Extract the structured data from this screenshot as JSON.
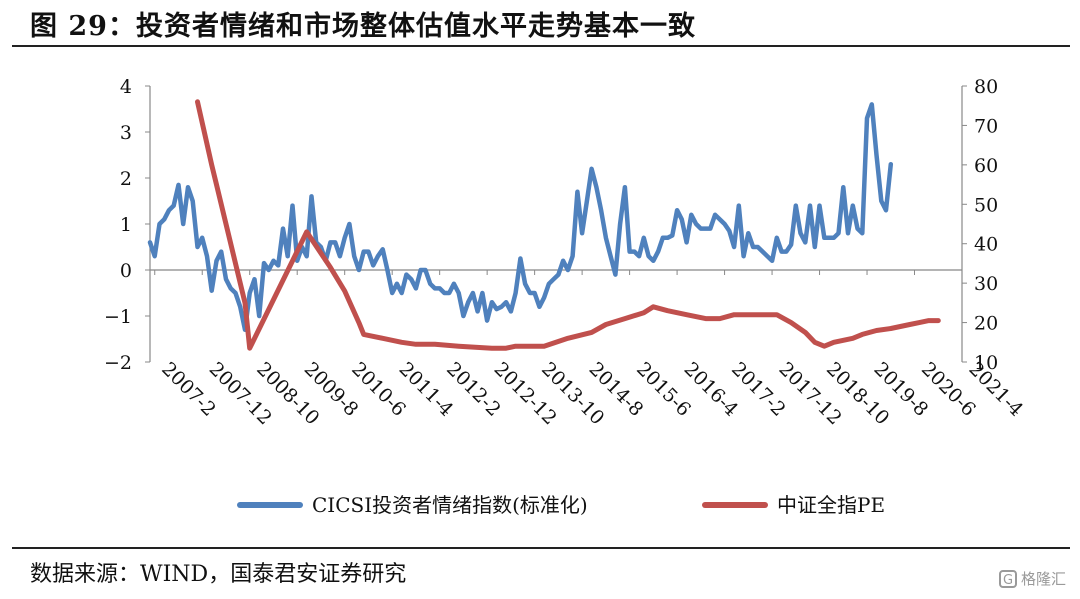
{
  "header": {
    "title": "图 29：投资者情绪和市场整体估值水平走势基本一致"
  },
  "footer": {
    "source": "数据来源：WIND，国泰君安证券研究",
    "watermark": "格隆汇"
  },
  "colors": {
    "sentiment": "#4f81bd",
    "pe": "#c0504d",
    "axis": "#888888"
  },
  "chart_data": {
    "type": "line",
    "title": "",
    "xlabel": "",
    "ylabel": "",
    "y_left_lim": [
      -2,
      4
    ],
    "y_left_ticks": [
      -2,
      -1,
      0,
      1,
      2,
      3,
      4
    ],
    "y_right_lim": [
      10,
      80
    ],
    "y_right_ticks": [
      10,
      20,
      30,
      40,
      50,
      60,
      70,
      80
    ],
    "x_tick_labels": [
      "2007-2",
      "2007-12",
      "2008-10",
      "2009-8",
      "2010-6",
      "2011-4",
      "2012-2",
      "2012-12",
      "2013-10",
      "2014-8",
      "2015-6",
      "2016-4",
      "2017-2",
      "2017-12",
      "2018-10",
      "2019-8",
      "2020-6",
      "2021-4"
    ],
    "x_range": [
      "2007-01",
      "2021-04"
    ],
    "grid": false,
    "legend_position": "bottom",
    "series": [
      {
        "name": "CICSI投资者情绪指数(标准化)",
        "axis": "left",
        "color": "#4f81bd",
        "points": [
          [
            "2007-01",
            0.6
          ],
          [
            "2007-02",
            0.3
          ],
          [
            "2007-03",
            1.0
          ],
          [
            "2007-04",
            1.1
          ],
          [
            "2007-05",
            1.3
          ],
          [
            "2007-06",
            1.4
          ],
          [
            "2007-07",
            1.85
          ],
          [
            "2007-08",
            1.0
          ],
          [
            "2007-09",
            1.8
          ],
          [
            "2007-10",
            1.5
          ],
          [
            "2007-11",
            0.5
          ],
          [
            "2007-12",
            0.7
          ],
          [
            "2008-01",
            0.3
          ],
          [
            "2008-02",
            -0.45
          ],
          [
            "2008-03",
            0.2
          ],
          [
            "2008-04",
            0.4
          ],
          [
            "2008-05",
            -0.2
          ],
          [
            "2008-06",
            -0.4
          ],
          [
            "2008-07",
            -0.5
          ],
          [
            "2008-08",
            -0.8
          ],
          [
            "2008-09",
            -1.3
          ],
          [
            "2008-10",
            -0.5
          ],
          [
            "2008-11",
            -0.2
          ],
          [
            "2008-12",
            -1.0
          ],
          [
            "2009-01",
            0.15
          ],
          [
            "2009-02",
            0.0
          ],
          [
            "2009-03",
            0.2
          ],
          [
            "2009-04",
            0.1
          ],
          [
            "2009-05",
            0.9
          ],
          [
            "2009-06",
            0.3
          ],
          [
            "2009-07",
            1.4
          ],
          [
            "2009-08",
            0.2
          ],
          [
            "2009-09",
            0.5
          ],
          [
            "2009-10",
            0.3
          ],
          [
            "2009-11",
            1.6
          ],
          [
            "2009-12",
            0.6
          ],
          [
            "2010-01",
            0.5
          ],
          [
            "2010-02",
            0.2
          ],
          [
            "2010-03",
            0.6
          ],
          [
            "2010-04",
            0.6
          ],
          [
            "2010-05",
            0.3
          ],
          [
            "2010-06",
            0.7
          ],
          [
            "2010-07",
            1.0
          ],
          [
            "2010-08",
            0.3
          ],
          [
            "2010-09",
            0.0
          ],
          [
            "2010-10",
            0.4
          ],
          [
            "2010-11",
            0.4
          ],
          [
            "2010-12",
            0.1
          ],
          [
            "2011-01",
            0.3
          ],
          [
            "2011-02",
            0.45
          ],
          [
            "2011-03",
            0.0
          ],
          [
            "2011-04",
            -0.5
          ],
          [
            "2011-05",
            -0.3
          ],
          [
            "2011-06",
            -0.5
          ],
          [
            "2011-07",
            -0.1
          ],
          [
            "2011-08",
            -0.2
          ],
          [
            "2011-09",
            -0.4
          ],
          [
            "2011-10",
            0.0
          ],
          [
            "2011-11",
            0.0
          ],
          [
            "2011-12",
            -0.3
          ],
          [
            "2012-01",
            -0.4
          ],
          [
            "2012-02",
            -0.4
          ],
          [
            "2012-03",
            -0.5
          ],
          [
            "2012-04",
            -0.5
          ],
          [
            "2012-05",
            -0.3
          ],
          [
            "2012-06",
            -0.5
          ],
          [
            "2012-07",
            -1.0
          ],
          [
            "2012-08",
            -0.7
          ],
          [
            "2012-09",
            -0.5
          ],
          [
            "2012-10",
            -0.9
          ],
          [
            "2012-11",
            -0.5
          ],
          [
            "2012-12",
            -1.1
          ],
          [
            "2013-01",
            -0.7
          ],
          [
            "2013-02",
            -0.85
          ],
          [
            "2013-03",
            -0.8
          ],
          [
            "2013-04",
            -0.7
          ],
          [
            "2013-05",
            -0.9
          ],
          [
            "2013-06",
            -0.5
          ],
          [
            "2013-07",
            0.25
          ],
          [
            "2013-08",
            -0.3
          ],
          [
            "2013-09",
            -0.5
          ],
          [
            "2013-10",
            -0.5
          ],
          [
            "2013-11",
            -0.8
          ],
          [
            "2013-12",
            -0.6
          ],
          [
            "2014-01",
            -0.3
          ],
          [
            "2014-02",
            -0.2
          ],
          [
            "2014-03",
            -0.1
          ],
          [
            "2014-04",
            0.2
          ],
          [
            "2014-05",
            0.0
          ],
          [
            "2014-06",
            0.3
          ],
          [
            "2014-07",
            1.7
          ],
          [
            "2014-08",
            0.8
          ],
          [
            "2014-09",
            1.5
          ],
          [
            "2014-10",
            2.2
          ],
          [
            "2014-11",
            1.8
          ],
          [
            "2014-12",
            1.3
          ],
          [
            "2015-01",
            0.7
          ],
          [
            "2015-02",
            0.3
          ],
          [
            "2015-03",
            -0.1
          ],
          [
            "2015-04",
            1.0
          ],
          [
            "2015-05",
            1.8
          ],
          [
            "2015-06",
            0.4
          ],
          [
            "2015-07",
            0.4
          ],
          [
            "2015-08",
            0.3
          ],
          [
            "2015-09",
            0.7
          ],
          [
            "2015-10",
            0.3
          ],
          [
            "2015-11",
            0.2
          ],
          [
            "2015-12",
            0.4
          ],
          [
            "2016-01",
            0.7
          ],
          [
            "2016-02",
            0.7
          ],
          [
            "2016-03",
            0.75
          ],
          [
            "2016-04",
            1.3
          ],
          [
            "2016-05",
            1.1
          ],
          [
            "2016-06",
            0.6
          ],
          [
            "2016-07",
            1.2
          ],
          [
            "2016-08",
            1.0
          ],
          [
            "2016-09",
            0.9
          ],
          [
            "2016-10",
            0.9
          ],
          [
            "2016-11",
            0.9
          ],
          [
            "2016-12",
            1.2
          ],
          [
            "2017-01",
            1.1
          ],
          [
            "2017-02",
            1.0
          ],
          [
            "2017-03",
            0.85
          ],
          [
            "2017-04",
            0.5
          ],
          [
            "2017-05",
            1.4
          ],
          [
            "2017-06",
            0.3
          ],
          [
            "2017-07",
            0.8
          ],
          [
            "2017-08",
            0.5
          ],
          [
            "2017-09",
            0.5
          ],
          [
            "2017-10",
            0.4
          ],
          [
            "2017-11",
            0.3
          ],
          [
            "2017-12",
            0.2
          ],
          [
            "2018-01",
            0.7
          ],
          [
            "2018-02",
            0.4
          ],
          [
            "2018-03",
            0.4
          ],
          [
            "2018-04",
            0.55
          ],
          [
            "2018-05",
            1.4
          ],
          [
            "2018-06",
            0.8
          ],
          [
            "2018-07",
            0.6
          ],
          [
            "2018-08",
            1.4
          ],
          [
            "2018-09",
            0.5
          ],
          [
            "2018-10",
            1.4
          ],
          [
            "2018-11",
            0.7
          ],
          [
            "2018-12",
            0.7
          ],
          [
            "2019-01",
            0.7
          ],
          [
            "2019-02",
            0.8
          ],
          [
            "2019-03",
            1.8
          ],
          [
            "2019-04",
            0.8
          ],
          [
            "2019-05",
            1.4
          ],
          [
            "2019-06",
            0.9
          ],
          [
            "2019-07",
            0.8
          ],
          [
            "2019-08",
            3.3
          ],
          [
            "2019-09",
            3.6
          ],
          [
            "2019-10",
            2.5
          ],
          [
            "2019-11",
            1.5
          ],
          [
            "2019-12",
            1.3
          ],
          [
            "2020-01",
            2.3
          ]
        ]
      },
      {
        "name": "中证全指PE",
        "axis": "right",
        "color": "#c0504d",
        "points": [
          [
            "2007-11",
            76
          ],
          [
            "2008-02",
            60
          ],
          [
            "2008-03",
            55
          ],
          [
            "2008-09",
            25
          ],
          [
            "2008-10",
            13.5
          ],
          [
            "2009-10",
            43
          ],
          [
            "2010-03",
            34
          ],
          [
            "2010-06",
            28
          ],
          [
            "2010-09",
            20
          ],
          [
            "2010-10",
            17
          ],
          [
            "2011-02",
            16
          ],
          [
            "2011-06",
            15
          ],
          [
            "2011-09",
            14.5
          ],
          [
            "2012-01",
            14.5
          ],
          [
            "2012-06",
            14
          ],
          [
            "2013-01",
            13.5
          ],
          [
            "2013-04",
            13.5
          ],
          [
            "2013-06",
            14
          ],
          [
            "2013-12",
            14
          ],
          [
            "2014-05",
            16
          ],
          [
            "2014-10",
            17.5
          ],
          [
            "2015-01",
            19.5
          ],
          [
            "2015-05",
            21
          ],
          [
            "2015-09",
            22.5
          ],
          [
            "2015-11",
            24
          ],
          [
            "2016-02",
            23
          ],
          [
            "2016-06",
            22
          ],
          [
            "2016-10",
            21
          ],
          [
            "2017-01",
            21
          ],
          [
            "2017-04",
            22
          ],
          [
            "2017-10",
            22
          ],
          [
            "2018-01",
            22
          ],
          [
            "2018-04",
            20
          ],
          [
            "2018-07",
            17.5
          ],
          [
            "2018-09",
            15
          ],
          [
            "2018-11",
            14
          ],
          [
            "2019-01",
            15
          ],
          [
            "2019-05",
            16
          ],
          [
            "2019-07",
            17
          ],
          [
            "2019-10",
            18
          ],
          [
            "2020-01",
            18.5
          ],
          [
            "2020-03",
            19
          ],
          [
            "2020-05",
            19.5
          ],
          [
            "2020-07",
            20
          ],
          [
            "2020-09",
            20.5
          ],
          [
            "2020-11",
            20.5
          ]
        ]
      }
    ]
  }
}
